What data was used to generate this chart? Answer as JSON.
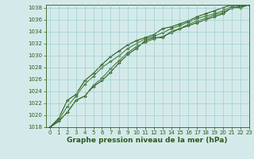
{
  "xlabel": "Graphe pression niveau de la mer (hPa)",
  "ylim": [
    1018,
    1038.5
  ],
  "xlim": [
    -0.5,
    23
  ],
  "yticks": [
    1018,
    1020,
    1022,
    1024,
    1026,
    1028,
    1030,
    1032,
    1034,
    1036,
    1038
  ],
  "xticks": [
    0,
    1,
    2,
    3,
    4,
    5,
    6,
    7,
    8,
    9,
    10,
    11,
    12,
    13,
    14,
    15,
    16,
    17,
    18,
    19,
    20,
    21,
    22,
    23
  ],
  "bg_color": "#d4eaea",
  "grid_color": "#90c8c8",
  "line_colors": [
    "#2d5a1b",
    "#3a7228",
    "#3a7228",
    "#2d5a1b"
  ],
  "series": [
    [
      1018.0,
      1019.0,
      1020.5,
      1022.5,
      1023.2,
      1024.8,
      1025.8,
      1027.2,
      1028.8,
      1030.2,
      1031.2,
      1032.5,
      1033.0,
      1033.0,
      1034.0,
      1034.5,
      1035.0,
      1035.5,
      1036.0,
      1036.5,
      1037.0,
      1038.0,
      1038.0,
      1038.5
    ],
    [
      1018.0,
      1019.0,
      1020.5,
      1022.5,
      1023.2,
      1025.0,
      1026.2,
      1027.8,
      1029.2,
      1030.5,
      1031.5,
      1032.2,
      1032.8,
      1033.2,
      1033.8,
      1034.5,
      1035.2,
      1035.8,
      1036.2,
      1036.8,
      1037.2,
      1038.0,
      1038.2,
      1038.5
    ],
    [
      1018.0,
      1019.2,
      1021.5,
      1023.2,
      1025.2,
      1026.5,
      1028.0,
      1029.0,
      1030.0,
      1031.2,
      1032.0,
      1032.8,
      1033.2,
      1033.8,
      1034.5,
      1035.0,
      1035.6,
      1036.2,
      1036.6,
      1037.0,
      1037.5,
      1038.2,
      1038.3,
      1038.8
    ],
    [
      1018.0,
      1019.5,
      1022.5,
      1023.5,
      1025.8,
      1027.0,
      1028.5,
      1029.8,
      1030.8,
      1031.8,
      1032.5,
      1033.0,
      1033.5,
      1034.5,
      1034.8,
      1035.3,
      1035.8,
      1036.5,
      1037.0,
      1037.5,
      1038.0,
      1038.5,
      1038.5,
      1039.0
    ]
  ],
  "linewidths": [
    0.8,
    0.7,
    0.7,
    0.8
  ],
  "marker_size": 1.8,
  "tick_fontsize": 5.0,
  "label_fontsize": 6.5,
  "tick_color": "#2d5a1b",
  "axis_color": "#2d5a1b"
}
